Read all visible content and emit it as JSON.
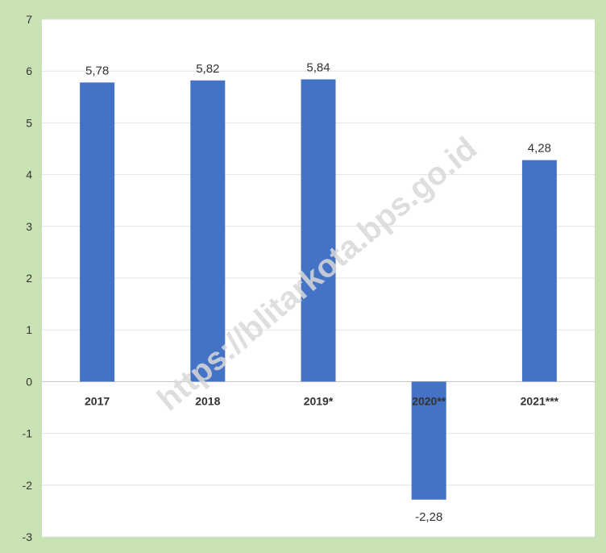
{
  "chart_data": {
    "type": "bar",
    "categories": [
      "2017",
      "2018",
      "2019*",
      "2020**",
      "2021***"
    ],
    "values": [
      5.78,
      5.82,
      5.84,
      -2.28,
      4.28
    ],
    "data_labels": [
      "5,78",
      "5,82",
      "5,84",
      "-2,28",
      "4,28"
    ],
    "y_ticks": [
      "7",
      "6",
      "5",
      "4",
      "3",
      "2",
      "1",
      "0",
      "-1",
      "-2",
      "-3"
    ],
    "ylim": [
      -3,
      7
    ],
    "grid": true,
    "bar_color": "#4472c4"
  },
  "watermark": "https://blitarkota.bps.go.id"
}
